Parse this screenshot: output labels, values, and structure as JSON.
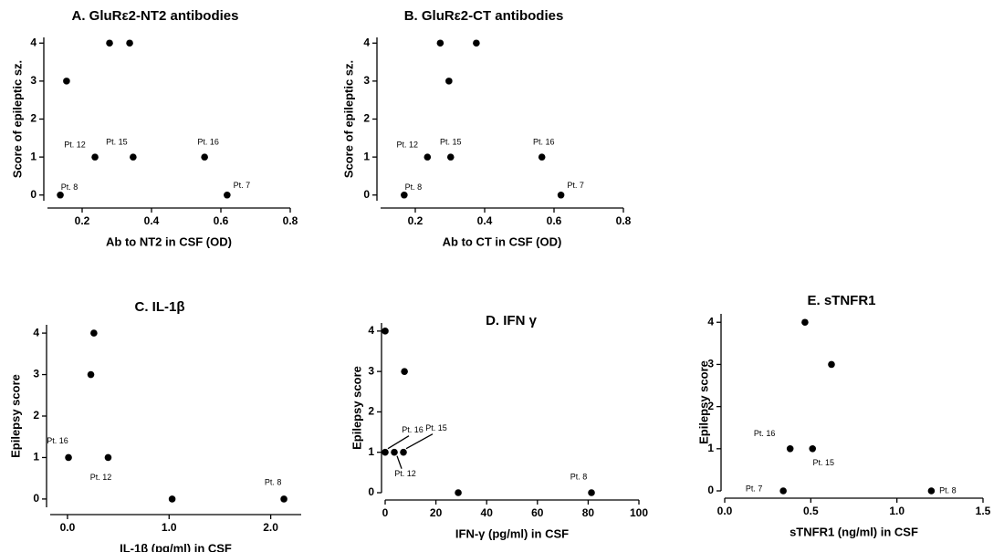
{
  "chart_data": [
    {
      "type": "scatter",
      "title": "A. GluRε2-NT2 antibodies",
      "x_label": "Ab to NT2 in CSF (OD)",
      "y_label": "Score of epileptic sz.",
      "x": [
        0.137,
        0.155,
        0.237,
        0.279,
        0.337,
        0.347,
        0.553,
        0.618
      ],
      "values": [
        0,
        3,
        1,
        4,
        4,
        1,
        1,
        0
      ],
      "point_labels": [
        "Pt. 8",
        null,
        "Pt. 12",
        null,
        null,
        "Pt. 15",
        "Pt. 16",
        "Pt. 7"
      ],
      "xlim": [
        0.1,
        0.8
      ],
      "ylim": [
        -0.15,
        4.15
      ],
      "xticks": [
        0.2,
        0.4,
        0.6,
        0.8
      ],
      "yticks": [
        0,
        1,
        2,
        3,
        4
      ],
      "color": "#000000"
    },
    {
      "type": "scatter",
      "title": "B. GluRε2-CT antibodies",
      "x_label": "Ab to CT in CSF (OD)",
      "y_label": "Score of epileptic sz.",
      "x": [
        0.168,
        0.235,
        0.272,
        0.297,
        0.302,
        0.376,
        0.565,
        0.62
      ],
      "values": [
        0,
        1,
        4,
        3,
        1,
        4,
        1,
        0
      ],
      "point_labels": [
        "Pt. 8",
        "Pt. 12",
        null,
        null,
        "Pt. 15",
        null,
        "Pt. 16",
        "Pt. 7"
      ],
      "xlim": [
        0.1,
        0.8
      ],
      "ylim": [
        -0.15,
        4.15
      ],
      "xticks": [
        0.2,
        0.4,
        0.6,
        0.8
      ],
      "yticks": [
        0,
        1,
        2,
        3,
        4
      ],
      "color": "#000000"
    },
    {
      "type": "scatter",
      "title": "C. IL-1β",
      "x_label": "IL-1β  (pg/ml) in CSF",
      "y_label": "Epilepsy score",
      "x": [
        0.01,
        0.23,
        0.26,
        0.4,
        1.03,
        2.13
      ],
      "values": [
        1,
        3,
        4,
        1,
        0,
        0
      ],
      "point_labels": [
        "Pt. 16",
        null,
        null,
        "Pt. 12",
        null,
        "Pt. 8"
      ],
      "xlim": [
        -0.17,
        2.3
      ],
      "ylim": [
        -0.2,
        4.2
      ],
      "xticks": [
        {
          "value": 0,
          "label": "0.0"
        },
        {
          "value": 1,
          "label": "1.0"
        },
        {
          "value": 2,
          "label": "2.0"
        }
      ],
      "yticks": [
        0,
        1,
        2,
        3,
        4
      ],
      "color": "#000000"
    },
    {
      "type": "scatter",
      "title": "D. IFN γ",
      "x_label": "IFN-γ (pg/ml) in CSF",
      "y_label": "Epilepsy score",
      "x": [
        0,
        7.6,
        0,
        3.6,
        7.2,
        28.8,
        81.3
      ],
      "values": [
        4,
        3,
        1,
        1,
        1,
        0,
        0
      ],
      "point_labels": [
        null,
        null,
        "Pt. 16",
        "Pt. 12",
        "Pt. 15",
        null,
        "Pt. 8"
      ],
      "xlim": [
        0,
        100
      ],
      "ylim": [
        0,
        4.2
      ],
      "xticks": [
        0,
        20,
        40,
        60,
        80,
        100
      ],
      "yticks": [
        0,
        1,
        2,
        3,
        4
      ],
      "color": "#000000"
    },
    {
      "type": "scatter",
      "title": "E. sTNFR1",
      "x_label": "sTNFR1 (ng/ml) in CSF",
      "y_label": "Epilepsy score",
      "x": [
        0.466,
        0.62,
        0.38,
        0.51,
        0.34,
        1.2
      ],
      "values": [
        4,
        3,
        1,
        1,
        0,
        0
      ],
      "point_labels": [
        null,
        null,
        "Pt. 16",
        "Pt. 15",
        "Pt. 7",
        "Pt. 8"
      ],
      "xlim": [
        0,
        1.5
      ],
      "ylim": [
        0,
        4.2
      ],
      "xticks": [
        {
          "value": 0,
          "label": "0.0"
        },
        {
          "value": 0.5,
          "label": "0.5"
        },
        {
          "value": 1,
          "label": "1.0"
        },
        {
          "value": 1.5,
          "label": "1.5"
        }
      ],
      "yticks": [
        0,
        1,
        2,
        3,
        4
      ],
      "color": "#000000"
    }
  ]
}
